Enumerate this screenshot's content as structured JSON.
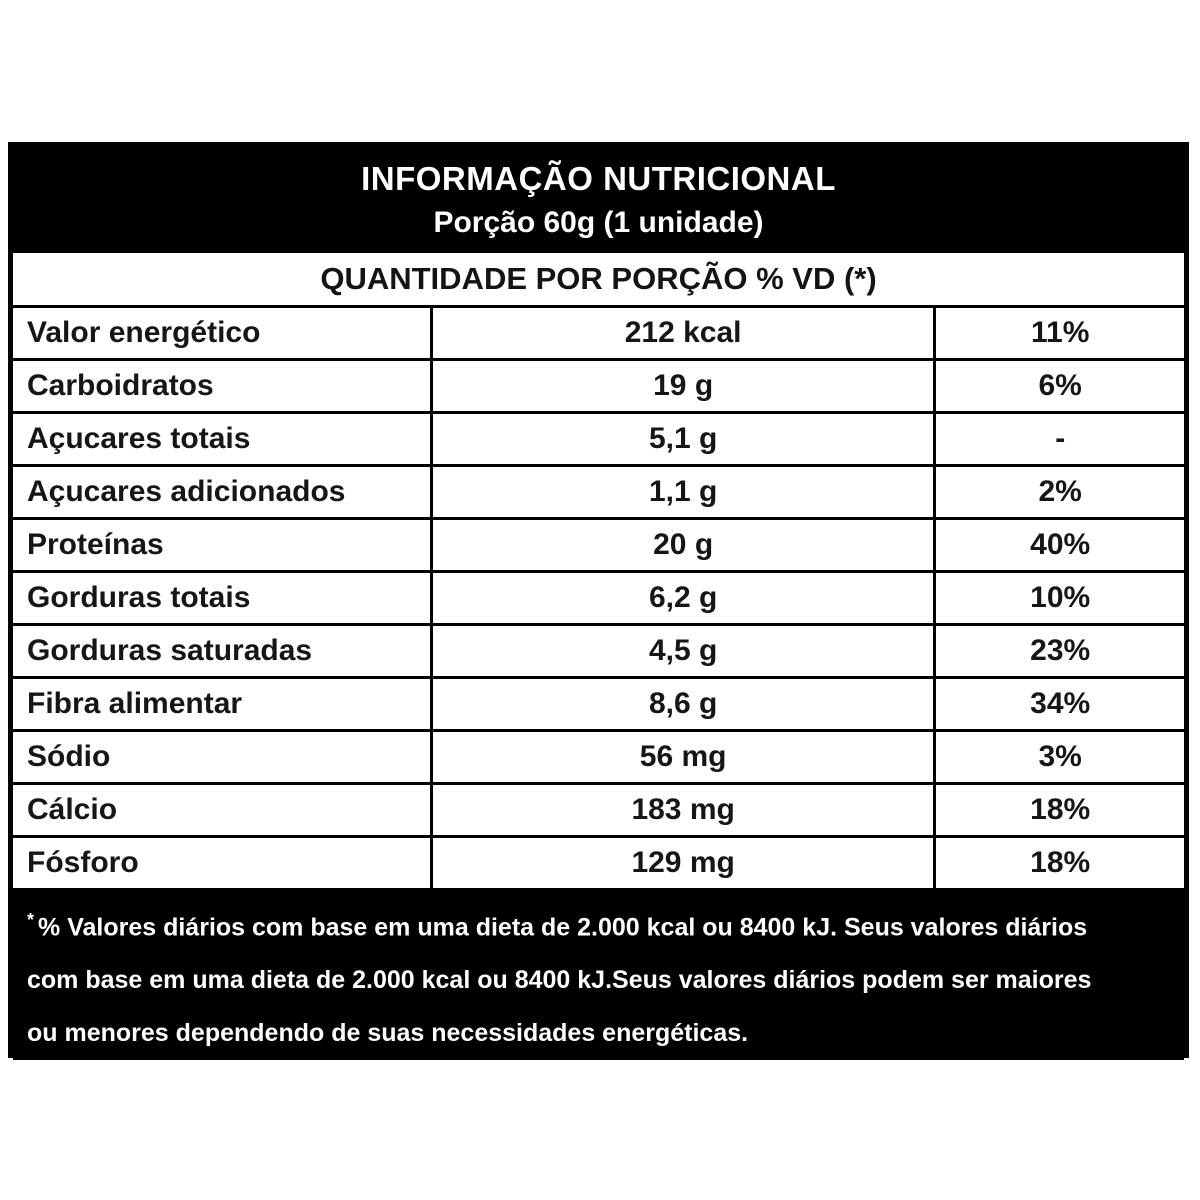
{
  "header": {
    "title": "INFORMAÇÃO NUTRICIONAL",
    "serving": "Porção 60g (1 unidade)"
  },
  "band": {
    "heading": "QUANTIDADE POR PORÇÃO % VD (*)"
  },
  "rows": [
    {
      "label": "Valor energético",
      "amount": "212 kcal",
      "dv": "11%"
    },
    {
      "label": "Carboidratos",
      "amount": "19 g",
      "dv": "6%"
    },
    {
      "label": "Açucares totais",
      "amount": "5,1 g",
      "dv": "-"
    },
    {
      "label": "Açucares adicionados",
      "amount": "1,1 g",
      "dv": "2%"
    },
    {
      "label": "Proteínas",
      "amount": "20 g",
      "dv": "40%"
    },
    {
      "label": "Gorduras totais",
      "amount": "6,2 g",
      "dv": "10%"
    },
    {
      "label": "Gorduras saturadas",
      "amount": "4,5 g",
      "dv": "23%"
    },
    {
      "label": "Fibra alimentar",
      "amount": "8,6 g",
      "dv": "34%"
    },
    {
      "label": "Sódio",
      "amount": "56 mg",
      "dv": "3%"
    },
    {
      "label": "Cálcio",
      "amount": "183 mg",
      "dv": "18%"
    },
    {
      "label": "Fósforo",
      "amount": "129 mg",
      "dv": "18%"
    }
  ],
  "footnote": {
    "asterisk": "*",
    "line1": "% Valores diários com base em uma dieta de 2.000 kcal ou 8400 kJ. Seus valores diários",
    "line2": "com base em uma dieta de 2.000 kcal ou 8400 kJ.Seus valores diários podem ser maiores",
    "line3": "ou menores dependendo de suas necessidades energéticas."
  },
  "colors": {
    "background": "#ffffff",
    "panel_black": "#000000",
    "text_dark": "#161616",
    "text_light": "#ffffff",
    "border": "#000000"
  }
}
